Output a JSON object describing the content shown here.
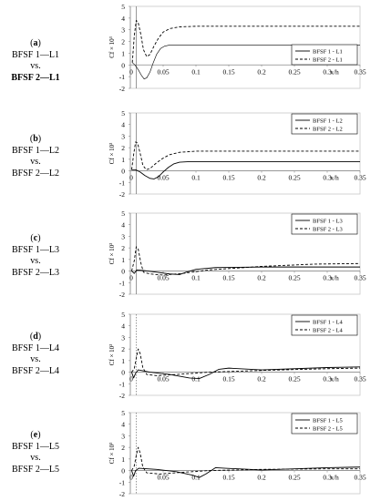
{
  "figure": {
    "panels": [
      {
        "letter": "a",
        "caption_line1": "BFSF 1—L1",
        "caption_line2": "vs.",
        "caption_line3": "BFSF 2—L1",
        "chart_index": 0
      },
      {
        "letter": "b",
        "caption_line1": "BFSF 1—L2",
        "caption_line2": "vs.",
        "caption_line3": "BFSF 2—L2",
        "chart_index": 1
      },
      {
        "letter": "c",
        "caption_line1": "BFSF 1—L3",
        "caption_line2": "vs.",
        "caption_line3": "BFSF 2—L3",
        "chart_index": 2
      },
      {
        "letter": "d",
        "caption_line1": "BFSF 1—L4",
        "caption_line2": "vs.",
        "caption_line3": "BFSF 2—L4",
        "chart_index": 3
      },
      {
        "letter": "e",
        "caption_line1": "BFSF 1—L5",
        "caption_line2": "vs.",
        "caption_line3": "BFSF 2—L5",
        "chart_index": 4
      }
    ]
  },
  "chart_data": [
    {
      "type": "line",
      "xlabel": "x/h",
      "ylabel": "Cf × 10³",
      "xlim": [
        0,
        0.35
      ],
      "ylim": [
        -2,
        5
      ],
      "xticks": [
        "0.05",
        "0.1",
        "0.15",
        "0.2",
        "0.25",
        "0.3",
        "0.35"
      ],
      "yticks": [
        "-2",
        "-1",
        "0",
        "1",
        "2",
        "3",
        "4",
        "5"
      ],
      "legend_position": "right",
      "series": [
        {
          "name": "BFSF 1 - L1",
          "style": "solid",
          "points": [
            [
              0.003,
              0.2
            ],
            [
              0.007,
              0.0
            ],
            [
              0.012,
              -0.4
            ],
            [
              0.017,
              -0.9
            ],
            [
              0.021,
              -1.2
            ],
            [
              0.025,
              -1.1
            ],
            [
              0.03,
              -0.6
            ],
            [
              0.035,
              0.2
            ],
            [
              0.04,
              0.9
            ],
            [
              0.046,
              1.4
            ],
            [
              0.052,
              1.6
            ],
            [
              0.06,
              1.7
            ],
            [
              0.1,
              1.7
            ],
            [
              0.2,
              1.7
            ],
            [
              0.35,
              1.7
            ]
          ]
        },
        {
          "name": "BFSF 2 - L1",
          "style": "dashed",
          "points": [
            [
              0.003,
              0.2
            ],
            [
              0.006,
              2.5
            ],
            [
              0.009,
              3.8
            ],
            [
              0.012,
              3.6
            ],
            [
              0.016,
              2.6
            ],
            [
              0.02,
              1.3
            ],
            [
              0.025,
              0.7
            ],
            [
              0.03,
              0.9
            ],
            [
              0.036,
              1.6
            ],
            [
              0.043,
              2.3
            ],
            [
              0.05,
              2.8
            ],
            [
              0.06,
              3.1
            ],
            [
              0.075,
              3.25
            ],
            [
              0.1,
              3.3
            ],
            [
              0.35,
              3.3
            ]
          ]
        }
      ]
    },
    {
      "type": "line",
      "xlabel": "x/h",
      "ylabel": "Cf × 10³",
      "xlim": [
        0,
        0.35
      ],
      "ylim": [
        -2,
        5
      ],
      "xticks": [
        "0.05",
        "0.1",
        "0.15",
        "0.2",
        "0.25",
        "0.3",
        "0.35"
      ],
      "yticks": [
        "-2",
        "-1",
        "0",
        "1",
        "2",
        "3",
        "4",
        "5"
      ],
      "legend_position": "top-right",
      "series": [
        {
          "name": "BFSF 1 - L2",
          "style": "solid",
          "points": [
            [
              0.002,
              0.1
            ],
            [
              0.008,
              0.1
            ],
            [
              0.015,
              -0.1
            ],
            [
              0.022,
              -0.4
            ],
            [
              0.03,
              -0.65
            ],
            [
              0.036,
              -0.7
            ],
            [
              0.043,
              -0.5
            ],
            [
              0.05,
              -0.1
            ],
            [
              0.058,
              0.3
            ],
            [
              0.066,
              0.6
            ],
            [
              0.075,
              0.75
            ],
            [
              0.09,
              0.8
            ],
            [
              0.15,
              0.8
            ],
            [
              0.35,
              0.8
            ]
          ]
        },
        {
          "name": "BFSF 2 - L2",
          "style": "dashed",
          "points": [
            [
              0.002,
              0.1
            ],
            [
              0.005,
              1.4
            ],
            [
              0.008,
              2.5
            ],
            [
              0.011,
              2.4
            ],
            [
              0.015,
              1.5
            ],
            [
              0.019,
              0.5
            ],
            [
              0.024,
              0.1
            ],
            [
              0.03,
              0.2
            ],
            [
              0.04,
              0.7
            ],
            [
              0.05,
              1.1
            ],
            [
              0.06,
              1.4
            ],
            [
              0.075,
              1.6
            ],
            [
              0.1,
              1.7
            ],
            [
              0.35,
              1.7
            ]
          ]
        }
      ]
    },
    {
      "type": "line",
      "xlabel": "x/h",
      "ylabel": "Cf × 10³",
      "xlim": [
        0,
        0.35
      ],
      "ylim": [
        -2,
        5
      ],
      "xticks": [
        "0.05",
        "0.1",
        "0.15",
        "0.2",
        "0.25",
        "0.3",
        "0.35"
      ],
      "yticks": [
        "-2",
        "-1",
        "0",
        "1",
        "2",
        "3",
        "4",
        "5"
      ],
      "legend_position": "top-right",
      "series": [
        {
          "name": "BFSF 1 - L3",
          "style": "solid",
          "points": [
            [
              0.002,
              0.0
            ],
            [
              0.006,
              -0.2
            ],
            [
              0.01,
              0.1
            ],
            [
              0.02,
              0.05
            ],
            [
              0.04,
              -0.1
            ],
            [
              0.06,
              -0.25
            ],
            [
              0.075,
              -0.3
            ],
            [
              0.085,
              -0.1
            ],
            [
              0.1,
              0.15
            ],
            [
              0.13,
              0.3
            ],
            [
              0.2,
              0.35
            ],
            [
              0.35,
              0.35
            ]
          ]
        },
        {
          "name": "BFSF 2 - L3",
          "style": "dashed",
          "points": [
            [
              0.002,
              0.0
            ],
            [
              0.006,
              0.9
            ],
            [
              0.009,
              2.1
            ],
            [
              0.012,
              1.9
            ],
            [
              0.016,
              0.7
            ],
            [
              0.02,
              -0.1
            ],
            [
              0.03,
              -0.25
            ],
            [
              0.05,
              -0.35
            ],
            [
              0.08,
              -0.2
            ],
            [
              0.12,
              0.1
            ],
            [
              0.2,
              0.4
            ],
            [
              0.28,
              0.6
            ],
            [
              0.35,
              0.65
            ]
          ]
        }
      ]
    },
    {
      "type": "line",
      "xlabel": "x/h",
      "ylabel": "Cf × 10³",
      "xlim": [
        0,
        0.35
      ],
      "ylim": [
        -2,
        5
      ],
      "xticks": [
        "0.05",
        "0.1",
        "0.15",
        "0.2",
        "0.25",
        "0.3",
        "0.35"
      ],
      "yticks": [
        "-2",
        "-1",
        "0",
        "1",
        "2",
        "3",
        "4",
        "5"
      ],
      "legend_position": "top-right",
      "series": [
        {
          "name": "BFSF 1 - L4",
          "style": "solid",
          "points": [
            [
              0.002,
              0.0
            ],
            [
              0.005,
              -0.5
            ],
            [
              0.008,
              -0.1
            ],
            [
              0.012,
              0.2
            ],
            [
              0.03,
              0.0
            ],
            [
              0.06,
              -0.2
            ],
            [
              0.09,
              -0.5
            ],
            [
              0.105,
              -0.55
            ],
            [
              0.12,
              -0.2
            ],
            [
              0.135,
              0.25
            ],
            [
              0.15,
              0.35
            ],
            [
              0.2,
              0.2
            ],
            [
              0.3,
              0.4
            ],
            [
              0.35,
              0.45
            ]
          ]
        },
        {
          "name": "BFSF 2 - L4",
          "style": "dashed",
          "points": [
            [
              0.002,
              0.0
            ],
            [
              0.006,
              0.3
            ],
            [
              0.009,
              1.2
            ],
            [
              0.012,
              2.0
            ],
            [
              0.015,
              1.6
            ],
            [
              0.019,
              0.4
            ],
            [
              0.025,
              -0.2
            ],
            [
              0.04,
              -0.3
            ],
            [
              0.07,
              -0.2
            ],
            [
              0.12,
              0.0
            ],
            [
              0.2,
              0.15
            ],
            [
              0.3,
              0.3
            ],
            [
              0.35,
              0.35
            ]
          ]
        }
      ]
    },
    {
      "type": "line",
      "xlabel": "x/h",
      "ylabel": "Cf × 10³",
      "xlim": [
        0,
        0.35
      ],
      "ylim": [
        -2,
        5
      ],
      "xticks": [
        "0.05",
        "0.1",
        "0.15",
        "0.2",
        "0.25",
        "0.3",
        "0.35"
      ],
      "yticks": [
        "-2",
        "-1",
        "0",
        "1",
        "2",
        "3",
        "4",
        "5"
      ],
      "legend_position": "top-right",
      "series": [
        {
          "name": "BFSF 1 - L5",
          "style": "solid",
          "points": [
            [
              0.002,
              0.0
            ],
            [
              0.005,
              -0.5
            ],
            [
              0.008,
              0.0
            ],
            [
              0.013,
              0.2
            ],
            [
              0.04,
              0.1
            ],
            [
              0.07,
              -0.1
            ],
            [
              0.095,
              -0.4
            ],
            [
              0.105,
              -0.6
            ],
            [
              0.115,
              -0.3
            ],
            [
              0.13,
              0.25
            ],
            [
              0.145,
              0.2
            ],
            [
              0.2,
              0.05
            ],
            [
              0.3,
              0.25
            ],
            [
              0.35,
              0.3
            ]
          ]
        },
        {
          "name": "BFSF 2 - L5",
          "style": "dashed",
          "points": [
            [
              0.002,
              0.0
            ],
            [
              0.006,
              0.4
            ],
            [
              0.009,
              1.3
            ],
            [
              0.012,
              2.0
            ],
            [
              0.015,
              1.5
            ],
            [
              0.019,
              0.3
            ],
            [
              0.025,
              -0.2
            ],
            [
              0.045,
              -0.3
            ],
            [
              0.08,
              -0.15
            ],
            [
              0.12,
              0.0
            ],
            [
              0.2,
              0.1
            ],
            [
              0.3,
              0.15
            ],
            [
              0.35,
              0.15
            ]
          ]
        }
      ]
    }
  ]
}
